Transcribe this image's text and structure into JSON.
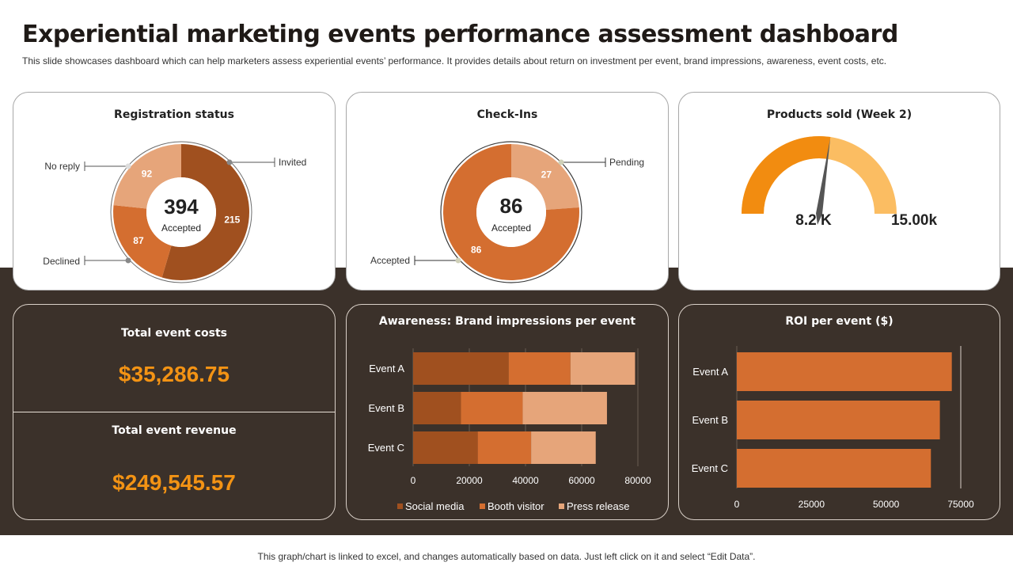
{
  "header": {
    "title": "Experiential marketing events performance assessment dashboard",
    "subtitle": "This slide showcases dashboard which can help marketers assess experiential events’ performance. It provides details about return on investment per event, brand impressions, awareness, event costs, etc."
  },
  "footer": {
    "text": "This graph/chart is linked to excel, and changes automatically based on data. Just left click on it and select “Edit Data”."
  },
  "colors": {
    "dark_band": "#3b312a",
    "accent_orange": "#f39314",
    "brown": "#a0501f",
    "orange": "#d46e30",
    "peach": "#e6a57a"
  },
  "registration": {
    "title": "Registration status",
    "center_value": "394",
    "center_label": "Accepted",
    "callouts": {
      "invited": "Invited",
      "no_reply": "No reply",
      "declined": "Declined"
    }
  },
  "checkins": {
    "title": "Check-Ins",
    "center_value": "86",
    "center_label": "Accepted",
    "callouts": {
      "pending": "Pending",
      "accepted": "Accepted"
    }
  },
  "products": {
    "title": "Products sold (Week 2)",
    "value_label": "8.2 K",
    "max_label": "15.00k"
  },
  "costs": {
    "title": "Total event costs",
    "value": "$35,286.75"
  },
  "revenue": {
    "title": "Total event revenue",
    "value": "$249,545.57"
  },
  "awareness": {
    "title": "Awareness: Brand impressions per event"
  },
  "roi": {
    "title": "ROI per event ($)"
  },
  "chart_data": [
    {
      "type": "pie",
      "title": "Registration status",
      "categories": [
        "Invited",
        "Declined",
        "No reply"
      ],
      "values": [
        215,
        87,
        92
      ],
      "colors": [
        "#a0501f",
        "#d46e30",
        "#e6a57a"
      ]
    },
    {
      "type": "pie",
      "title": "Check-Ins",
      "categories": [
        "Pending",
        "Accepted"
      ],
      "values": [
        27,
        86
      ],
      "colors": [
        "#e6a57a",
        "#d46e30"
      ]
    },
    {
      "type": "gauge",
      "title": "Products sold (Week 2)",
      "value": 8.2,
      "max": 15,
      "colors": [
        "#f28c10",
        "#fbbd62"
      ]
    },
    {
      "type": "bar",
      "orientation": "horizontal",
      "stacked": true,
      "title": "Awareness: Brand impressions per event",
      "categories": [
        "Event A",
        "Event B",
        "Event C"
      ],
      "series": [
        {
          "name": "Social media",
          "values": [
            34000,
            17000,
            23000
          ],
          "color": "#a0501f"
        },
        {
          "name": "Booth visitor",
          "values": [
            22000,
            22000,
            19000
          ],
          "color": "#d46e30"
        },
        {
          "name": "Press release",
          "values": [
            23000,
            30000,
            23000
          ],
          "color": "#e6a57a"
        }
      ],
      "xlim": [
        0,
        80000
      ],
      "xticks": [
        "0",
        "20000",
        "40000",
        "60000",
        "80000"
      ],
      "legend": "bottom"
    },
    {
      "type": "bar",
      "orientation": "horizontal",
      "title": "ROI per event ($)",
      "categories": [
        "Event A",
        "Event B",
        "Event C"
      ],
      "values": [
        72000,
        68000,
        65000
      ],
      "color": "#d46e30",
      "xlim": [
        0,
        75000
      ],
      "xticks": [
        "0",
        "25000",
        "50000",
        "75000"
      ]
    }
  ]
}
